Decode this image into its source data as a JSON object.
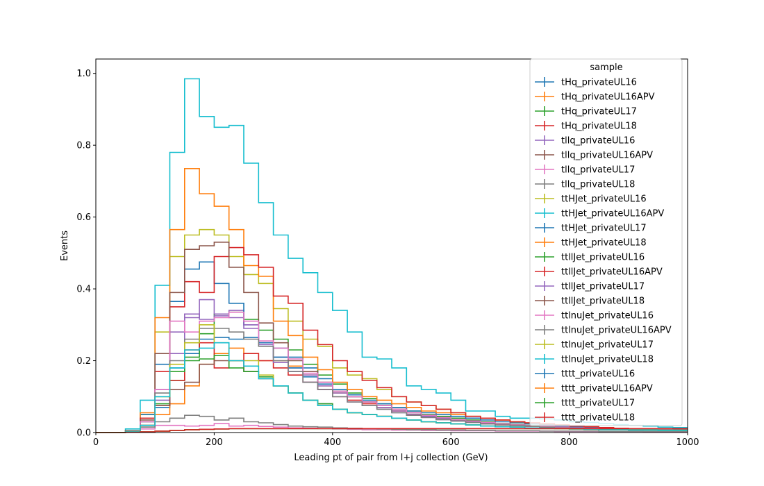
{
  "chart_data": {
    "type": "histogram-step",
    "xlabel": "Leading pt of pair from l+j collection (GeV)",
    "ylabel": "Events",
    "xlim": [
      0,
      1000
    ],
    "ylim": [
      0,
      1.04
    ],
    "xticks": [
      0,
      200,
      400,
      600,
      800,
      1000
    ],
    "yticks": [
      0.0,
      0.2,
      0.4,
      0.6,
      0.8,
      1.0
    ],
    "bin_edges": [
      0,
      25,
      50,
      75,
      100,
      125,
      150,
      175,
      200,
      225,
      250,
      275,
      300,
      325,
      350,
      375,
      400,
      425,
      450,
      475,
      500,
      525,
      550,
      575,
      600,
      625,
      650,
      675,
      700,
      725,
      750,
      775,
      800,
      825,
      850,
      875,
      900,
      925,
      950,
      975,
      1000
    ],
    "grid": false,
    "legend": {
      "title": "sample",
      "placement": "top-right"
    },
    "series": [
      {
        "name": "tHq_privateUL16",
        "color": "#1f77b4",
        "values": [
          0,
          0,
          0.002,
          0.015,
          0.07,
          0.18,
          0.22,
          0.26,
          0.265,
          0.26,
          0.265,
          0.245,
          0.235,
          0.21,
          0.18,
          0.15,
          0.12,
          0.105,
          0.085,
          0.075,
          0.065,
          0.055,
          0.045,
          0.04,
          0.035,
          0.03,
          0.025,
          0.022,
          0.02,
          0.018,
          0.016,
          0.014,
          0.012,
          0.011,
          0.01,
          0.009,
          0.008,
          0.008,
          0.007,
          0.007
        ]
      },
      {
        "name": "tHq_privateUL16APV",
        "color": "#ff7f0e",
        "values": [
          0,
          0,
          0.002,
          0.015,
          0.05,
          0.08,
          0.13,
          0.19,
          0.22,
          0.235,
          0.22,
          0.2,
          0.2,
          0.185,
          0.16,
          0.13,
          0.11,
          0.1,
          0.085,
          0.07,
          0.06,
          0.05,
          0.045,
          0.04,
          0.035,
          0.03,
          0.025,
          0.022,
          0.02,
          0.018,
          0.015,
          0.013,
          0.012,
          0.01,
          0.009,
          0.008,
          0.008,
          0.007,
          0.006,
          0.006
        ]
      },
      {
        "name": "tHq_privateUL17",
        "color": "#2ca02c",
        "values": [
          0,
          0,
          0.002,
          0.02,
          0.08,
          0.145,
          0.21,
          0.275,
          0.33,
          0.335,
          0.315,
          0.285,
          0.26,
          0.23,
          0.19,
          0.16,
          0.135,
          0.11,
          0.095,
          0.08,
          0.07,
          0.06,
          0.05,
          0.045,
          0.04,
          0.035,
          0.03,
          0.025,
          0.022,
          0.02,
          0.018,
          0.015,
          0.013,
          0.012,
          0.011,
          0.01,
          0.009,
          0.008,
          0.008,
          0.007
        ]
      },
      {
        "name": "tHq_privateUL18",
        "color": "#d62728",
        "values": [
          0,
          0,
          0.002,
          0.02,
          0.075,
          0.145,
          0.23,
          0.25,
          0.18,
          0.2,
          0.22,
          0.2,
          0.18,
          0.16,
          0.14,
          0.12,
          0.1,
          0.09,
          0.08,
          0.07,
          0.06,
          0.05,
          0.045,
          0.04,
          0.035,
          0.03,
          0.025,
          0.022,
          0.02,
          0.018,
          0.015,
          0.013,
          0.012,
          0.011,
          0.01,
          0.009,
          0.008,
          0.008,
          0.007,
          0.007
        ]
      },
      {
        "name": "tllq_privateUL16",
        "color": "#9467bd",
        "values": [
          0,
          0,
          0.002,
          0.02,
          0.09,
          0.22,
          0.32,
          0.37,
          0.33,
          0.34,
          0.29,
          0.25,
          0.21,
          0.18,
          0.16,
          0.13,
          0.11,
          0.1,
          0.085,
          0.07,
          0.06,
          0.05,
          0.045,
          0.04,
          0.035,
          0.03,
          0.025,
          0.022,
          0.02,
          0.018,
          0.015,
          0.013,
          0.012,
          0.011,
          0.01,
          0.009,
          0.008,
          0.008,
          0.007,
          0.007
        ]
      },
      {
        "name": "tllq_privateUL16APV",
        "color": "#8c564b",
        "values": [
          0,
          0,
          0.002,
          0.02,
          0.075,
          0.12,
          0.14,
          0.19,
          0.2,
          0.2,
          0.17,
          0.15,
          0.13,
          0.11,
          0.09,
          0.08,
          0.065,
          0.055,
          0.05,
          0.045,
          0.04,
          0.035,
          0.03,
          0.027,
          0.024,
          0.021,
          0.018,
          0.016,
          0.015,
          0.013,
          0.012,
          0.011,
          0.01,
          0.009,
          0.008,
          0.008,
          0.007,
          0.007,
          0.006,
          0.006
        ]
      },
      {
        "name": "tllq_privateUL17",
        "color": "#e377c2",
        "values": [
          0,
          0,
          0.002,
          0.01,
          0.02,
          0.02,
          0.018,
          0.02,
          0.025,
          0.018,
          0.02,
          0.017,
          0.015,
          0.013,
          0.012,
          0.011,
          0.01,
          0.009,
          0.008,
          0.008,
          0.007,
          0.007,
          0.006,
          0.006,
          0.005,
          0.005,
          0.005,
          0.004,
          0.004,
          0.004,
          0.004,
          0.003,
          0.003,
          0.003,
          0.003,
          0.003,
          0.003,
          0.002,
          0.002,
          0.002
        ]
      },
      {
        "name": "tllq_privateUL18",
        "color": "#7f7f7f",
        "values": [
          0,
          0,
          0.002,
          0.015,
          0.03,
          0.04,
          0.048,
          0.045,
          0.035,
          0.04,
          0.03,
          0.027,
          0.022,
          0.018,
          0.016,
          0.015,
          0.013,
          0.012,
          0.011,
          0.01,
          0.009,
          0.008,
          0.008,
          0.007,
          0.007,
          0.006,
          0.006,
          0.005,
          0.005,
          0.005,
          0.004,
          0.004,
          0.004,
          0.004,
          0.003,
          0.003,
          0.003,
          0.003,
          0.003,
          0.003
        ]
      },
      {
        "name": "ttHJet_privateUL16",
        "color": "#bcbd22",
        "values": [
          0,
          0,
          0.005,
          0.05,
          0.28,
          0.49,
          0.55,
          0.565,
          0.55,
          0.49,
          0.44,
          0.415,
          0.345,
          0.31,
          0.26,
          0.24,
          0.18,
          0.16,
          0.15,
          0.12,
          0.1,
          0.085,
          0.075,
          0.065,
          0.055,
          0.045,
          0.04,
          0.035,
          0.03,
          0.025,
          0.022,
          0.02,
          0.018,
          0.016,
          0.014,
          0.012,
          0.011,
          0.01,
          0.01,
          0.009
        ]
      },
      {
        "name": "ttHJet_privateUL16APV",
        "color": "#17becf",
        "values": [
          0,
          0,
          0.01,
          0.09,
          0.41,
          0.78,
          0.985,
          0.88,
          0.85,
          0.855,
          0.75,
          0.64,
          0.55,
          0.485,
          0.445,
          0.39,
          0.34,
          0.28,
          0.21,
          0.205,
          0.18,
          0.13,
          0.12,
          0.11,
          0.09,
          0.06,
          0.06,
          0.045,
          0.04,
          0.04,
          0.038,
          0.035,
          0.03,
          0.028,
          0.025,
          0.022,
          0.02,
          0.018,
          0.015,
          0.014
        ]
      },
      {
        "name": "ttHJet_privateUL17",
        "color": "#1f77b4",
        "values": [
          0,
          0,
          0.005,
          0.05,
          0.19,
          0.365,
          0.455,
          0.475,
          0.415,
          0.36,
          0.3,
          0.25,
          0.21,
          0.18,
          0.155,
          0.135,
          0.115,
          0.1,
          0.09,
          0.08,
          0.07,
          0.06,
          0.055,
          0.05,
          0.045,
          0.04,
          0.035,
          0.03,
          0.027,
          0.024,
          0.021,
          0.018,
          0.016,
          0.014,
          0.012,
          0.011,
          0.01,
          0.009,
          0.008,
          0.008
        ]
      },
      {
        "name": "ttHJet_privateUL18",
        "color": "#ff7f0e",
        "values": [
          0,
          0,
          0.005,
          0.055,
          0.32,
          0.565,
          0.735,
          0.665,
          0.63,
          0.565,
          0.465,
          0.435,
          0.31,
          0.27,
          0.21,
          0.175,
          0.14,
          0.12,
          0.1,
          0.09,
          0.08,
          0.07,
          0.06,
          0.055,
          0.05,
          0.045,
          0.04,
          0.035,
          0.03,
          0.027,
          0.024,
          0.021,
          0.018,
          0.016,
          0.014,
          0.012,
          0.011,
          0.01,
          0.009,
          0.008
        ]
      },
      {
        "name": "ttllJet_privateUL16",
        "color": "#2ca02c",
        "values": [
          0,
          0,
          0.003,
          0.03,
          0.1,
          0.17,
          0.2,
          0.205,
          0.215,
          0.18,
          0.17,
          0.155,
          0.13,
          0.11,
          0.09,
          0.08,
          0.065,
          0.055,
          0.05,
          0.045,
          0.04,
          0.035,
          0.03,
          0.027,
          0.024,
          0.021,
          0.018,
          0.016,
          0.015,
          0.013,
          0.012,
          0.011,
          0.01,
          0.009,
          0.008,
          0.008,
          0.007,
          0.007,
          0.006,
          0.006
        ]
      },
      {
        "name": "ttllJet_privateUL16APV",
        "color": "#d62728",
        "values": [
          0,
          0,
          0.005,
          0.04,
          0.17,
          0.35,
          0.42,
          0.39,
          0.49,
          0.515,
          0.495,
          0.46,
          0.38,
          0.36,
          0.285,
          0.245,
          0.2,
          0.17,
          0.145,
          0.125,
          0.1,
          0.085,
          0.075,
          0.065,
          0.055,
          0.045,
          0.04,
          0.035,
          0.03,
          0.027,
          0.024,
          0.021,
          0.018,
          0.016,
          0.014,
          0.012,
          0.011,
          0.01,
          0.009,
          0.008
        ]
      },
      {
        "name": "ttllJet_privateUL17",
        "color": "#9467bd",
        "values": [
          0,
          0,
          0.003,
          0.03,
          0.12,
          0.28,
          0.33,
          0.315,
          0.325,
          0.32,
          0.3,
          0.245,
          0.195,
          0.17,
          0.14,
          0.12,
          0.1,
          0.085,
          0.075,
          0.065,
          0.055,
          0.048,
          0.042,
          0.036,
          0.032,
          0.028,
          0.024,
          0.021,
          0.019,
          0.017,
          0.015,
          0.013,
          0.012,
          0.011,
          0.01,
          0.009,
          0.008,
          0.008,
          0.007,
          0.007
        ]
      },
      {
        "name": "ttllJet_privateUL18",
        "color": "#8c564b",
        "values": [
          0,
          0,
          0.005,
          0.035,
          0.22,
          0.39,
          0.51,
          0.52,
          0.53,
          0.46,
          0.39,
          0.305,
          0.25,
          0.2,
          0.17,
          0.14,
          0.115,
          0.1,
          0.085,
          0.075,
          0.065,
          0.055,
          0.048,
          0.042,
          0.036,
          0.032,
          0.028,
          0.024,
          0.021,
          0.019,
          0.017,
          0.015,
          0.013,
          0.012,
          0.011,
          0.01,
          0.009,
          0.008,
          0.008,
          0.007
        ]
      },
      {
        "name": "ttlnuJet_privateUL16",
        "color": "#e377c2",
        "values": [
          0,
          0,
          0.003,
          0.03,
          0.12,
          0.31,
          0.28,
          0.31,
          0.32,
          0.335,
          0.31,
          0.255,
          0.235,
          0.205,
          0.165,
          0.14,
          0.115,
          0.1,
          0.085,
          0.075,
          0.065,
          0.055,
          0.048,
          0.042,
          0.036,
          0.032,
          0.028,
          0.024,
          0.021,
          0.019,
          0.017,
          0.015,
          0.013,
          0.012,
          0.011,
          0.01,
          0.009,
          0.008,
          0.008,
          0.007
        ]
      },
      {
        "name": "ttlnuJet_privateUL16APV",
        "color": "#7f7f7f",
        "values": [
          0,
          0,
          0.003,
          0.02,
          0.11,
          0.2,
          0.26,
          0.29,
          0.29,
          0.28,
          0.26,
          0.24,
          0.2,
          0.17,
          0.14,
          0.12,
          0.1,
          0.085,
          0.075,
          0.065,
          0.055,
          0.048,
          0.042,
          0.036,
          0.032,
          0.028,
          0.024,
          0.021,
          0.019,
          0.017,
          0.015,
          0.013,
          0.012,
          0.011,
          0.01,
          0.009,
          0.008,
          0.008,
          0.007,
          0.007
        ]
      },
      {
        "name": "ttlnuJet_privateUL17",
        "color": "#bcbd22",
        "values": [
          0,
          0,
          0.003,
          0.02,
          0.1,
          0.19,
          0.25,
          0.3,
          0.25,
          0.2,
          0.2,
          0.16,
          0.13,
          0.11,
          0.09,
          0.075,
          0.065,
          0.055,
          0.05,
          0.045,
          0.04,
          0.035,
          0.03,
          0.027,
          0.024,
          0.021,
          0.018,
          0.016,
          0.015,
          0.013,
          0.012,
          0.011,
          0.01,
          0.009,
          0.008,
          0.008,
          0.007,
          0.007,
          0.006,
          0.006
        ]
      },
      {
        "name": "ttlnuJet_privateUL18",
        "color": "#17becf",
        "values": [
          0,
          0,
          0.003,
          0.02,
          0.1,
          0.18,
          0.23,
          0.235,
          0.25,
          0.2,
          0.185,
          0.15,
          0.13,
          0.11,
          0.09,
          0.075,
          0.065,
          0.055,
          0.05,
          0.045,
          0.04,
          0.035,
          0.03,
          0.027,
          0.024,
          0.021,
          0.018,
          0.016,
          0.015,
          0.013,
          0.012,
          0.011,
          0.01,
          0.009,
          0.008,
          0.008,
          0.007,
          0.007,
          0.006,
          0.006
        ]
      },
      {
        "name": "tttt_privateUL16",
        "color": "#1f77b4",
        "values": [
          0,
          0,
          0.0005,
          0.002,
          0.004,
          0.006,
          0.008,
          0.009,
          0.01,
          0.011,
          0.011,
          0.011,
          0.011,
          0.011,
          0.011,
          0.011,
          0.011,
          0.011,
          0.011,
          0.011,
          0.011,
          0.011,
          0.011,
          0.011,
          0.011,
          0.011,
          0.011,
          0.011,
          0.011,
          0.011,
          0.011,
          0.011,
          0.011,
          0.011,
          0.011,
          0.011,
          0.011,
          0.011,
          0.011,
          0.011
        ]
      },
      {
        "name": "tttt_privateUL16APV",
        "color": "#ff7f0e",
        "values": [
          0,
          0,
          0.0005,
          0.002,
          0.004,
          0.006,
          0.008,
          0.009,
          0.01,
          0.011,
          0.011,
          0.011,
          0.011,
          0.011,
          0.011,
          0.011,
          0.011,
          0.011,
          0.011,
          0.011,
          0.011,
          0.011,
          0.011,
          0.011,
          0.011,
          0.011,
          0.011,
          0.011,
          0.011,
          0.011,
          0.011,
          0.011,
          0.011,
          0.011,
          0.011,
          0.011,
          0.011,
          0.011,
          0.011,
          0.011
        ]
      },
      {
        "name": "tttt_privateUL17",
        "color": "#2ca02c",
        "values": [
          0,
          0,
          0.0005,
          0.002,
          0.004,
          0.006,
          0.008,
          0.009,
          0.01,
          0.011,
          0.011,
          0.011,
          0.011,
          0.011,
          0.011,
          0.011,
          0.011,
          0.011,
          0.011,
          0.011,
          0.011,
          0.011,
          0.011,
          0.011,
          0.011,
          0.011,
          0.011,
          0.011,
          0.011,
          0.011,
          0.011,
          0.011,
          0.011,
          0.011,
          0.011,
          0.011,
          0.011,
          0.011,
          0.011,
          0.011
        ]
      },
      {
        "name": "tttt_privateUL18",
        "color": "#d62728",
        "values": [
          0,
          0,
          0.0005,
          0.002,
          0.004,
          0.006,
          0.008,
          0.009,
          0.01,
          0.011,
          0.011,
          0.011,
          0.011,
          0.011,
          0.011,
          0.011,
          0.011,
          0.011,
          0.011,
          0.011,
          0.011,
          0.011,
          0.011,
          0.011,
          0.011,
          0.011,
          0.011,
          0.011,
          0.011,
          0.011,
          0.011,
          0.011,
          0.011,
          0.011,
          0.011,
          0.011,
          0.011,
          0.011,
          0.011,
          0.011
        ]
      }
    ]
  }
}
